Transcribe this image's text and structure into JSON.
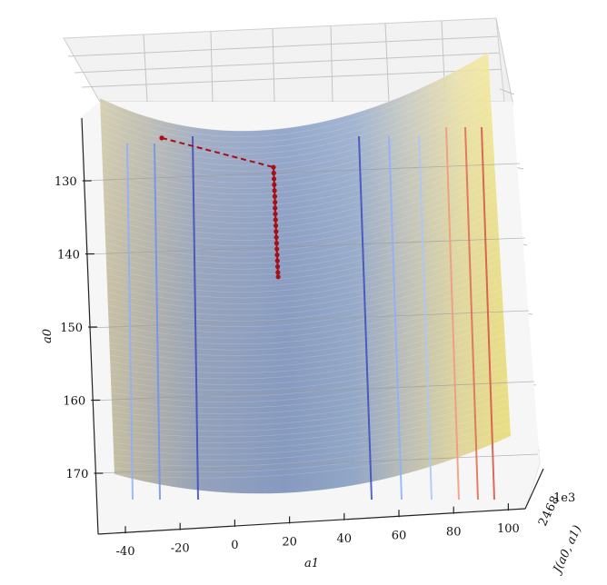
{
  "chart_data": {
    "type": "surface3d",
    "xlabel": "a1",
    "ylabel": "a0",
    "zlabel": "J(a0, a1)",
    "xlim": [
      -50,
      100
    ],
    "ylim": [
      170,
      120
    ],
    "x_ticks": [
      "-40",
      "-20",
      "0",
      "20",
      "40",
      "60",
      "80",
      "100"
    ],
    "y_ticks": [
      "130",
      "140",
      "150",
      "160",
      "170"
    ],
    "z_tick_labels": [
      "2",
      "4",
      "6",
      "8"
    ],
    "z_exponent": "1e3",
    "surface_colormap": [
      "#3b4cc0",
      "#8db0fe",
      "#dddddd",
      "#f4987a",
      "#f4e44c"
    ],
    "contour_lines": [
      {
        "a1": -35,
        "color": "#8db0fe"
      },
      {
        "a1": -25,
        "color": "#6f92f3"
      },
      {
        "a1": -11,
        "color": "#3b4cc0"
      },
      {
        "a1": 48,
        "color": "#3b4cc0"
      },
      {
        "a1": 59,
        "color": "#8db0fe"
      },
      {
        "a1": 70,
        "color": "#aac7fd"
      },
      {
        "a1": 80,
        "color": "#f4987a"
      },
      {
        "a1": 87,
        "color": "#e06a50"
      },
      {
        "a1": 93,
        "color": "#d65244"
      }
    ],
    "gradient_descent_path": {
      "color": "#a50f15",
      "points": [
        {
          "a1": -28,
          "a0": 127
        },
        {
          "a1": 15,
          "a0": 131
        },
        {
          "a1": 15.1,
          "a0": 131.8
        },
        {
          "a1": 15.2,
          "a0": 132.6
        },
        {
          "a1": 15.3,
          "a0": 133.4
        },
        {
          "a1": 15.4,
          "a0": 134.2
        },
        {
          "a1": 15.5,
          "a0": 135.0
        },
        {
          "a1": 15.6,
          "a0": 135.8
        },
        {
          "a1": 15.6,
          "a0": 136.6
        },
        {
          "a1": 15.7,
          "a0": 137.4
        },
        {
          "a1": 15.8,
          "a0": 138.2
        },
        {
          "a1": 15.9,
          "a0": 139.0
        },
        {
          "a1": 16.0,
          "a0": 139.8
        },
        {
          "a1": 16.1,
          "a0": 140.6
        },
        {
          "a1": 16.2,
          "a0": 141.4
        },
        {
          "a1": 16.3,
          "a0": 142.2
        },
        {
          "a1": 16.4,
          "a0": 143.0
        },
        {
          "a1": 16.5,
          "a0": 143.8
        },
        {
          "a1": 16.6,
          "a0": 144.6
        },
        {
          "a1": 16.7,
          "a0": 145.4
        },
        {
          "a1": 16.8,
          "a0": 146.0
        }
      ]
    }
  }
}
